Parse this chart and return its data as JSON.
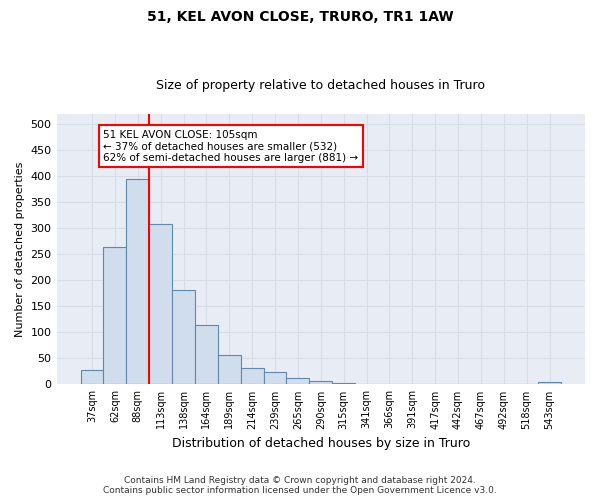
{
  "title": "51, KEL AVON CLOSE, TRURO, TR1 1AW",
  "subtitle": "Size of property relative to detached houses in Truro",
  "xlabel": "Distribution of detached houses by size in Truro",
  "ylabel": "Number of detached properties",
  "footer_line1": "Contains HM Land Registry data © Crown copyright and database right 2024.",
  "footer_line2": "Contains public sector information licensed under the Open Government Licence v3.0.",
  "bar_color": "#cfdded",
  "bar_edge_color": "#5f8aad",
  "categories": [
    "37sqm",
    "62sqm",
    "88sqm",
    "113sqm",
    "138sqm",
    "164sqm",
    "189sqm",
    "214sqm",
    "239sqm",
    "265sqm",
    "290sqm",
    "315sqm",
    "341sqm",
    "366sqm",
    "391sqm",
    "417sqm",
    "442sqm",
    "467sqm",
    "492sqm",
    "518sqm",
    "543sqm"
  ],
  "values": [
    28,
    265,
    395,
    308,
    182,
    115,
    57,
    32,
    24,
    12,
    6,
    2,
    1,
    1,
    1,
    1,
    0,
    0,
    0,
    0,
    4
  ],
  "red_line_x": 2.5,
  "annotation_line1": "51 KEL AVON CLOSE: 105sqm",
  "annotation_line2": "← 37% of detached houses are smaller (532)",
  "annotation_line3": "62% of semi-detached houses are larger (881) →",
  "ylim": [
    0,
    520
  ],
  "yticks": [
    0,
    50,
    100,
    150,
    200,
    250,
    300,
    350,
    400,
    450,
    500
  ],
  "grid_color": "#d8dce8",
  "background_color": "#e8ecf4",
  "title_fontsize": 10,
  "subtitle_fontsize": 9,
  "ylabel_fontsize": 8,
  "xlabel_fontsize": 9,
  "tick_fontsize": 8,
  "xtick_fontsize": 7,
  "footer_fontsize": 6.5
}
